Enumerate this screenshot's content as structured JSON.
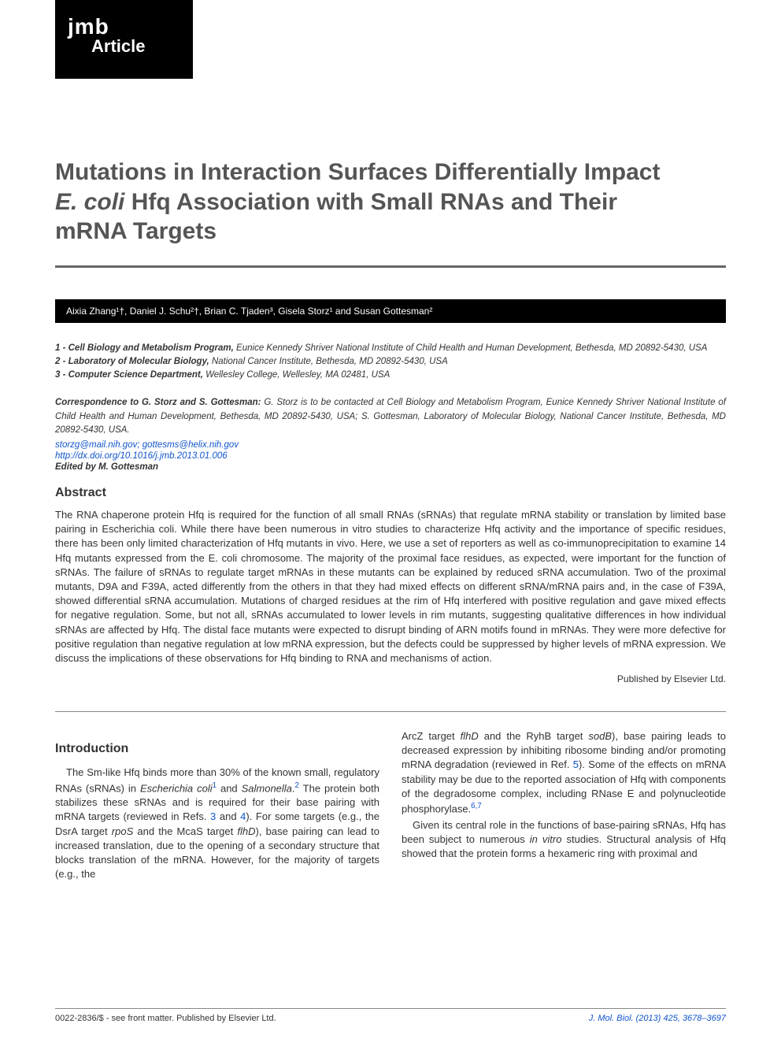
{
  "badge": {
    "jmb": "jmb",
    "type": "Article"
  },
  "title": {
    "line1": "Mutations in Interaction Surfaces Differentially Impact",
    "line2_italic": "E. coli",
    "line2_rest": " Hfq Association with Small RNAs and Their",
    "line3": "mRNA Targets"
  },
  "authors": "Aixia Zhang¹†, Daniel J. Schu²†, Brian C. Tjaden³, Gisela Storz¹ and Susan Gottesman²",
  "affiliations": [
    {
      "num": "1 - ",
      "name": "Cell Biology and Metabolism Program,",
      "rest": " Eunice Kennedy Shriver National Institute of Child Health and Human Development, Bethesda, MD 20892-5430, USA"
    },
    {
      "num": "2 - ",
      "name": "Laboratory of Molecular Biology,",
      "rest": " National Cancer Institute, Bethesda, MD 20892-5430, USA"
    },
    {
      "num": "3 - ",
      "name": "Computer Science Department,",
      "rest": " Wellesley College, Wellesley, MA 02481, USA"
    }
  ],
  "correspondence": {
    "lead": "Correspondence to G. Storz and S. Gottesman:",
    "body": " G. Storz is to be contacted at Cell Biology and Metabolism Program, Eunice Kennedy Shriver National Institute of Child Health and Human Development, Bethesda, MD 20892-5430, USA; S. Gottesman, Laboratory of Molecular Biology, National Cancer Institute, Bethesda, MD 20892-5430, USA."
  },
  "emails": "storzg@mail.nih.gov; gottesms@helix.nih.gov",
  "doi": "http://dx.doi.org/10.1016/j.jmb.2013.01.006",
  "edited": "Edited by M. Gottesman",
  "abstract_heading": "Abstract",
  "abstract": "The RNA chaperone protein Hfq is required for the function of all small RNAs (sRNAs) that regulate mRNA stability or translation by limited base pairing in Escherichia coli. While there have been numerous in vitro studies to characterize Hfq activity and the importance of specific residues, there has been only limited characterization of Hfq mutants in vivo. Here, we use a set of reporters as well as co-immunoprecipitation to examine 14 Hfq mutants expressed from the E. coli chromosome. The majority of the proximal face residues, as expected, were important for the function of sRNAs. The failure of sRNAs to regulate target mRNAs in these mutants can be explained by reduced sRNA accumulation. Two of the proximal mutants, D9A and F39A, acted differently from the others in that they had mixed effects on different sRNA/mRNA pairs and, in the case of F39A, showed differential sRNA accumulation. Mutations of charged residues at the rim of Hfq interfered with positive regulation and gave mixed effects for negative regulation. Some, but not all, sRNAs accumulated to lower levels in rim mutants, suggesting qualitative differences in how individual sRNAs are affected by Hfq. The distal face mutants were expected to disrupt binding of ARN motifs found in mRNAs. They were more defective for positive regulation than negative regulation at low mRNA expression, but the defects could be suppressed by higher levels of mRNA expression. We discuss the implications of these observations for Hfq binding to RNA and mechanisms of action.",
  "published_by": "Published by Elsevier Ltd.",
  "intro_heading": "Introduction",
  "col1": {
    "p1_a": "The Sm-like Hfq binds more than 30% of the known small, regulatory RNAs (sRNAs) in ",
    "p1_b": "Escher­ichia coli",
    "p1_ref1": "1",
    "p1_c": " and ",
    "p1_d": "Salmonella",
    "p1_e": ".",
    "p1_ref2": "2",
    "p1_f": " The protein both stabilizes these sRNAs and is required for their base pairing with mRNA targets (reviewed in Refs. ",
    "p1_ref3": "3",
    "p1_g": " and ",
    "p1_ref4": "4",
    "p1_h": "). For some targets (e.g., the DsrA target ",
    "p1_i": "rpoS",
    "p1_j": " and the McaS target ",
    "p1_k": "flhD",
    "p1_l": "), base pairing can lead to increased translation, due to the opening of a secondary structure that blocks translation of the mRNA. However, for the majority of targets (e.g., the"
  },
  "col2": {
    "p1_a": "ArcZ target ",
    "p1_b": "flhD",
    "p1_c": " and the RyhB target ",
    "p1_d": "sodB",
    "p1_e": "), base pairing leads to decreased expression by inhibiting ribosome binding and/or promoting mRNA degrada­tion (reviewed in Ref. ",
    "p1_ref5": "5",
    "p1_f": "). Some of the effects on mRNA stability may be due to the reported associ­ation of Hfq with components of the degradosome complex, including RNase E and polynucleotide phosphorylase.",
    "p1_ref67": "6,7",
    "p2_a": "Given its central role in the functions of base-pairing sRNAs, Hfq has been subject to numerous ",
    "p2_b": "in vitro",
    "p2_c": " studies. Structural analysis of Hfq showed that the protein forms a hexameric ring with proximal and"
  },
  "footer": {
    "left": "0022-2836/$ - see front matter. Published by Elsevier Ltd.",
    "right": "J. Mol. Biol. (2013) 425, 3678–3697"
  },
  "colors": {
    "badge_bg": "#000000",
    "badge_fg": "#ffffff",
    "title_fg": "#555555",
    "link": "#1155cc",
    "rule": "#666666"
  },
  "typography": {
    "title_fontsize_pt": 23,
    "body_fontsize_pt": 10,
    "abstract_fontsize_pt": 10,
    "font_family": "Arial/Helvetica"
  }
}
